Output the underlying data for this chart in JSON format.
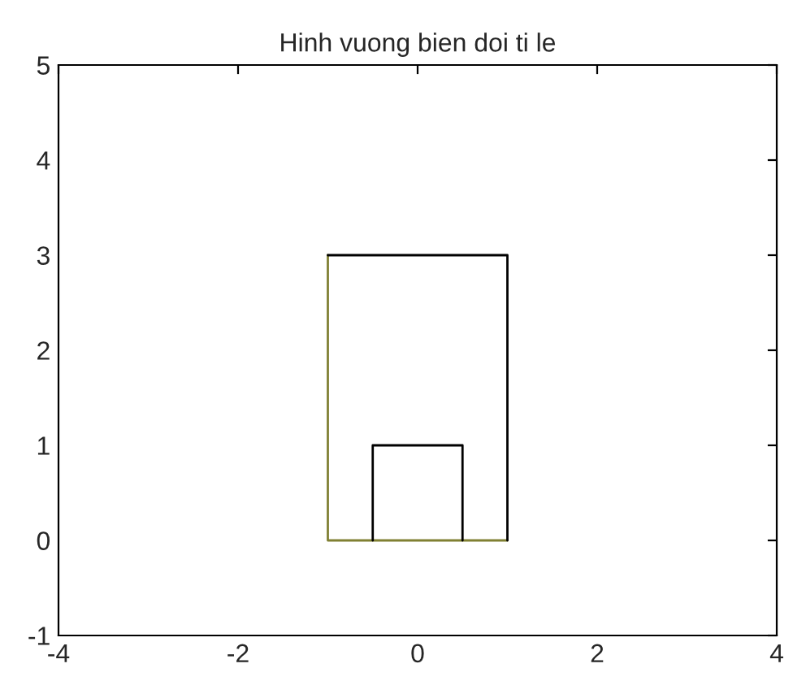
{
  "chart_data": {
    "type": "line",
    "title": "Hinh vuong bien doi ti le",
    "series": [
      {
        "x": [
          -0.5,
          -0.5,
          0.5,
          0.5
        ],
        "values": [
          0,
          1,
          1,
          0
        ],
        "color": "#000000"
      },
      {
        "x": [
          -1,
          1,
          1
        ],
        "values": [
          3,
          3,
          0
        ],
        "color": "#000000"
      },
      {
        "x": [
          -1,
          -1,
          1
        ],
        "values": [
          3,
          0,
          0
        ],
        "color": "#808033"
      }
    ],
    "xlim": [
      -4,
      4
    ],
    "xticks": [
      -4,
      -2,
      0,
      2,
      4
    ],
    "ylim": [
      -1,
      5
    ],
    "yticks": [
      -1,
      0,
      1,
      2,
      3,
      4,
      5
    ],
    "grid": false,
    "legend": false
  }
}
